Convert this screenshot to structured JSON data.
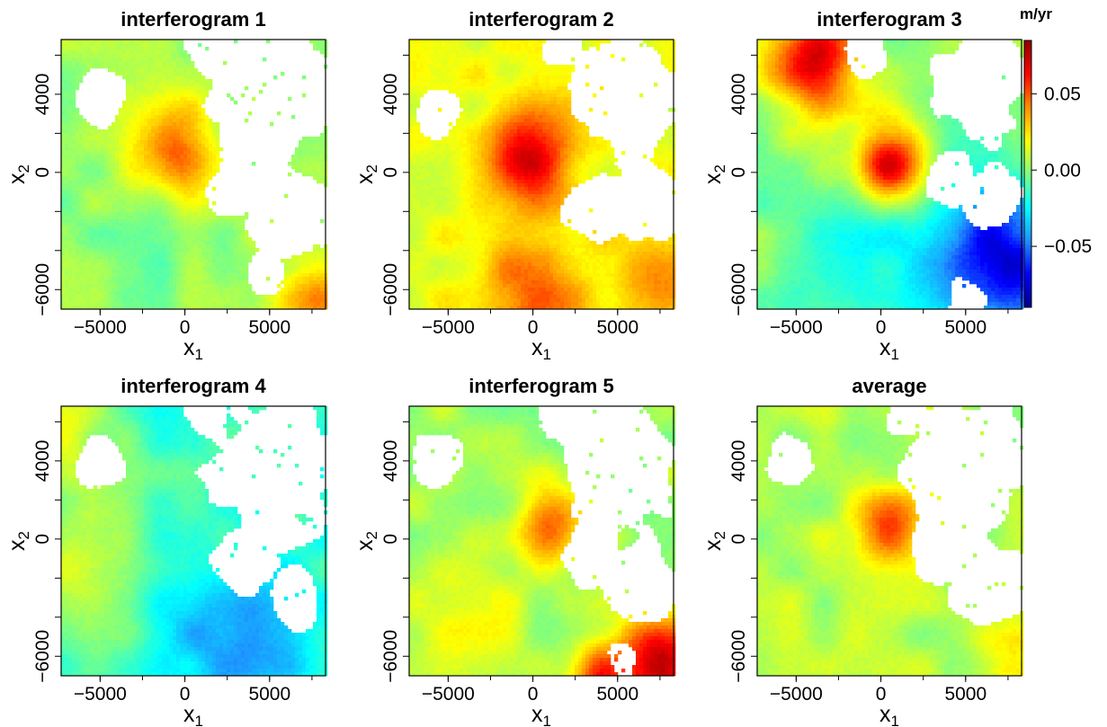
{
  "chart_data": {
    "type": "heatmap",
    "units_label": "m/yr",
    "color_scale": {
      "min": -0.09,
      "max": 0.085,
      "ticks": [
        0.05,
        0.0,
        -0.05
      ],
      "tick_labels": [
        "0.05",
        "0.00",
        "−0.05"
      ],
      "colors": [
        "#00008b",
        "#0000ff",
        "#1e90ff",
        "#00ffff",
        "#7fff7f",
        "#ffff00",
        "#ff8c00",
        "#ff0000",
        "#8b0000"
      ]
    },
    "xlabel": "x",
    "xlabel_sub": "1",
    "ylabel": "x",
    "ylabel_sub": "2",
    "xlim": [
      -7300,
      8300
    ],
    "ylim": [
      -7000,
      6800
    ],
    "xticks": [
      -5000,
      0,
      5000
    ],
    "xtick_labels": [
      "−5000",
      "0",
      "5000"
    ],
    "yticks": [
      -6000,
      0,
      4000
    ],
    "ytick_labels": [
      "−6000",
      "0",
      "4000"
    ],
    "panels": [
      {
        "title": "interferogram 1",
        "base": 0.003,
        "hotspots": [
          {
            "x": -500,
            "y": 1000,
            "amp": 0.05,
            "r": 1700
          },
          {
            "x": 7800,
            "y": -6600,
            "amp": 0.032,
            "r": 1800
          },
          {
            "x": -2500,
            "y": -3000,
            "amp": -0.006,
            "r": 3500
          }
        ],
        "gradient": {
          "gx": 0.0,
          "gy": 0.0
        },
        "masks": [
          {
            "x": 5200,
            "y": 3800,
            "r": 3700
          },
          {
            "x": 3200,
            "y": -500,
            "r": 1800
          },
          {
            "x": 6000,
            "y": -2000,
            "r": 2600
          },
          {
            "x": -5000,
            "y": 4000,
            "r": 1500
          },
          {
            "x": 1500,
            "y": 6200,
            "r": 1400
          },
          {
            "x": 4800,
            "y": -5200,
            "r": 1200
          }
        ]
      },
      {
        "title": "interferogram 2",
        "base": 0.015,
        "hotspots": [
          {
            "x": -200,
            "y": 1000,
            "amp": 0.055,
            "r": 1800
          },
          {
            "x": 0,
            "y": -6500,
            "amp": 0.03,
            "r": 2600
          },
          {
            "x": 7500,
            "y": -5500,
            "amp": 0.025,
            "r": 1800
          }
        ],
        "gradient": {
          "gx": 0.0,
          "gy": 0.0
        },
        "masks": [
          {
            "x": 5400,
            "y": 4000,
            "r": 3300
          },
          {
            "x": 3800,
            "y": -2000,
            "r": 1900
          },
          {
            "x": 6800,
            "y": -1800,
            "r": 2000
          },
          {
            "x": -5600,
            "y": 3000,
            "r": 1300
          },
          {
            "x": 1800,
            "y": 6500,
            "r": 1200
          }
        ]
      },
      {
        "title": "interferogram 3",
        "base": -0.002,
        "hotspots": [
          {
            "x": 500,
            "y": 500,
            "amp": 0.075,
            "r": 1500
          },
          {
            "x": -4000,
            "y": 5800,
            "amp": 0.07,
            "r": 2000
          },
          {
            "x": 7200,
            "y": -4200,
            "amp": -0.07,
            "r": 2600
          },
          {
            "x": 500,
            "y": -4500,
            "amp": -0.02,
            "r": 3200
          }
        ],
        "gradient": {
          "gx": 0.0,
          "gy": 0.0
        },
        "masks": [
          {
            "x": 5800,
            "y": 4500,
            "r": 2800
          },
          {
            "x": 4200,
            "y": -200,
            "r": 1500
          },
          {
            "x": 6500,
            "y": -1200,
            "r": 1600
          },
          {
            "x": -1000,
            "y": 6200,
            "r": 1300
          },
          {
            "x": 5000,
            "y": -6600,
            "r": 1100
          }
        ]
      },
      {
        "title": "interferogram 4",
        "base": -0.015,
        "hotspots": [
          {
            "x": 3000,
            "y": -5500,
            "amp": -0.03,
            "r": 2800
          },
          {
            "x": -6500,
            "y": -1000,
            "amp": 0.03,
            "r": 2800
          },
          {
            "x": -7000,
            "y": 6000,
            "amp": 0.025,
            "r": 2000
          }
        ],
        "gradient": {
          "gx": 0.0,
          "gy": 0.0
        },
        "masks": [
          {
            "x": 5200,
            "y": 3500,
            "r": 3600
          },
          {
            "x": 3500,
            "y": -1200,
            "r": 1800
          },
          {
            "x": 6500,
            "y": -3000,
            "r": 1500
          },
          {
            "x": -5000,
            "y": 4000,
            "r": 1400
          },
          {
            "x": 1300,
            "y": 6400,
            "r": 1200
          }
        ]
      },
      {
        "title": "interferogram 5",
        "base": 0.003,
        "hotspots": [
          {
            "x": 1200,
            "y": 600,
            "amp": 0.045,
            "r": 1500
          },
          {
            "x": 7500,
            "y": -6500,
            "amp": 0.07,
            "r": 1700
          },
          {
            "x": 3800,
            "y": -7000,
            "amp": 0.05,
            "r": 1200
          },
          {
            "x": -3500,
            "y": -4000,
            "amp": 0.015,
            "r": 2200
          }
        ],
        "gradient": {
          "gx": 0.0,
          "gy": 0.0
        },
        "masks": [
          {
            "x": 5200,
            "y": 3800,
            "r": 3600
          },
          {
            "x": 3500,
            "y": -700,
            "r": 1700
          },
          {
            "x": 6300,
            "y": -2300,
            "r": 2300
          },
          {
            "x": -5600,
            "y": 4200,
            "r": 1400
          },
          {
            "x": 1600,
            "y": 6400,
            "r": 1300
          },
          {
            "x": 5300,
            "y": -6100,
            "r": 900
          }
        ]
      },
      {
        "title": "average",
        "base": 0.006,
        "hotspots": [
          {
            "x": 500,
            "y": 600,
            "amp": 0.045,
            "r": 1400
          },
          {
            "x": 7800,
            "y": -6800,
            "amp": 0.02,
            "r": 1400
          }
        ],
        "gradient": {
          "gx": 0.0,
          "gy": 0.0
        },
        "masks": [
          {
            "x": 5200,
            "y": 3800,
            "r": 3600
          },
          {
            "x": 3300,
            "y": -700,
            "r": 1800
          },
          {
            "x": 6300,
            "y": -2300,
            "r": 2300
          },
          {
            "x": -5300,
            "y": 4000,
            "r": 1400
          },
          {
            "x": 1500,
            "y": 6400,
            "r": 1300
          }
        ]
      }
    ]
  }
}
